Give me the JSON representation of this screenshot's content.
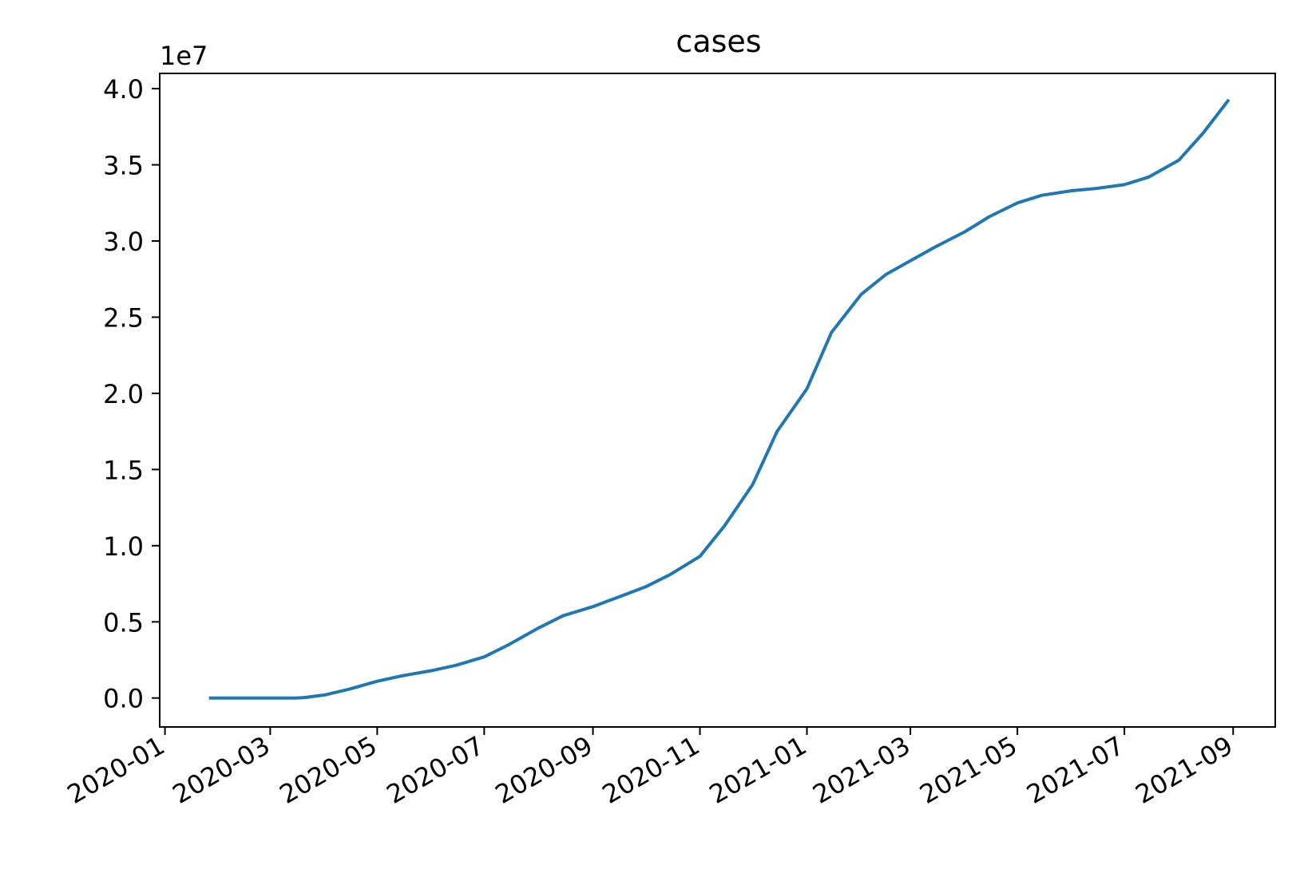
{
  "chart_data": {
    "type": "line",
    "title": "cases",
    "xlabel": "",
    "ylabel": "",
    "y_offset_label": "1e7",
    "y_scale": 10000000,
    "ylim": [
      -1900000,
      41000000
    ],
    "xlim": [
      "2019-12-29",
      "2021-09-25"
    ],
    "grid": false,
    "legend": "none",
    "x_ticks": [
      "2020-01-01",
      "2020-03-01",
      "2020-05-01",
      "2020-07-01",
      "2020-09-01",
      "2020-11-01",
      "2021-01-01",
      "2021-03-01",
      "2021-05-01",
      "2021-07-01",
      "2021-09-01"
    ],
    "x_tick_labels": [
      "2020-01",
      "2020-03",
      "2020-05",
      "2020-07",
      "2020-09",
      "2020-11",
      "2021-01",
      "2021-03",
      "2021-05",
      "2021-07",
      "2021-09"
    ],
    "y_ticks": [
      0,
      5000000,
      10000000,
      15000000,
      20000000,
      25000000,
      30000000,
      35000000,
      40000000
    ],
    "y_tick_labels": [
      "0.0",
      "0.5",
      "1.0",
      "1.5",
      "2.0",
      "2.5",
      "3.0",
      "3.5",
      "4.0"
    ],
    "series": [
      {
        "color": "#1f77b4",
        "points": [
          [
            "2020-01-27",
            0
          ],
          [
            "2020-03-01",
            10
          ],
          [
            "2020-03-15",
            3000
          ],
          [
            "2020-03-20",
            20000
          ],
          [
            "2020-04-01",
            200000
          ],
          [
            "2020-04-15",
            580000
          ],
          [
            "2020-05-01",
            1100000
          ],
          [
            "2020-05-15",
            1450000
          ],
          [
            "2020-06-01",
            1800000
          ],
          [
            "2020-06-15",
            2150000
          ],
          [
            "2020-07-01",
            2700000
          ],
          [
            "2020-07-15",
            3500000
          ],
          [
            "2020-08-01",
            4600000
          ],
          [
            "2020-08-15",
            5400000
          ],
          [
            "2020-09-01",
            6000000
          ],
          [
            "2020-09-15",
            6600000
          ],
          [
            "2020-10-01",
            7300000
          ],
          [
            "2020-10-15",
            8100000
          ],
          [
            "2020-11-01",
            9300000
          ],
          [
            "2020-11-15",
            11300000
          ],
          [
            "2020-12-01",
            14000000
          ],
          [
            "2020-12-15",
            17500000
          ],
          [
            "2021-01-01",
            20300000
          ],
          [
            "2021-01-15",
            24000000
          ],
          [
            "2021-02-01",
            26500000
          ],
          [
            "2021-02-15",
            27800000
          ],
          [
            "2021-03-01",
            28700000
          ],
          [
            "2021-03-15",
            29600000
          ],
          [
            "2021-04-01",
            30600000
          ],
          [
            "2021-04-15",
            31600000
          ],
          [
            "2021-05-01",
            32500000
          ],
          [
            "2021-05-15",
            33000000
          ],
          [
            "2021-06-01",
            33300000
          ],
          [
            "2021-06-15",
            33450000
          ],
          [
            "2021-07-01",
            33700000
          ],
          [
            "2021-07-15",
            34200000
          ],
          [
            "2021-08-01",
            35300000
          ],
          [
            "2021-08-15",
            37100000
          ],
          [
            "2021-08-29",
            39200000
          ]
        ]
      }
    ]
  }
}
